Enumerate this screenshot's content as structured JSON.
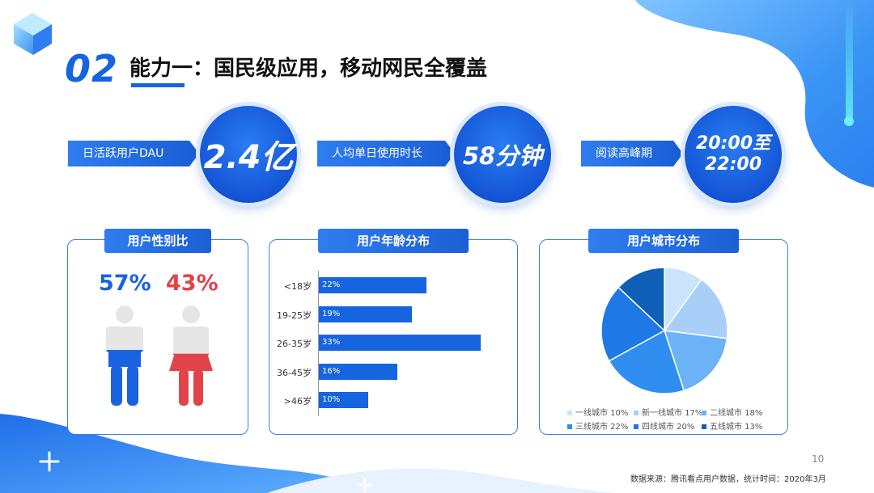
{
  "header": {
    "section_number": "02",
    "title": "能力一：国民级应用，移动网民全覆盖"
  },
  "stats": [
    {
      "label": "日活跃用户DAU",
      "value": "2.4亿"
    },
    {
      "label": "人均单日使用时长",
      "value": "58分钟"
    },
    {
      "label": "阅读高峰期",
      "value_line1": "20:00至",
      "value_line2": "22:00"
    }
  ],
  "gender_panel": {
    "title": "用户性别比",
    "male_pct": "57%",
    "female_pct": "43%",
    "male_fill": 0.57,
    "female_fill": 0.43
  },
  "age_panel": {
    "title": "用户年龄分布",
    "categories": [
      "<18岁",
      "19-25岁",
      "26-35岁",
      "36-45岁",
      ">46岁"
    ],
    "values": [
      22,
      19,
      33,
      16,
      10
    ],
    "value_labels": [
      "22%",
      "19%",
      "33%",
      "16%",
      "10%"
    ]
  },
  "city_panel": {
    "title": "用户城市分布",
    "legend": [
      "一线城市 10%",
      "新一线城市 17%",
      "二线城市 18%",
      "三线城市 22%",
      "四线城市 20%",
      "五线城市 13%"
    ]
  },
  "chart_data": [
    {
      "type": "bar",
      "title": "用户年龄分布",
      "categories": [
        "<18岁",
        "19-25岁",
        "26-35岁",
        "36-45岁",
        ">46岁"
      ],
      "values": [
        22,
        19,
        33,
        16,
        10
      ],
      "unit": "%"
    },
    {
      "type": "pie",
      "title": "用户城市分布",
      "categories": [
        "一线城市",
        "新一线城市",
        "二线城市",
        "三线城市",
        "四线城市",
        "五线城市"
      ],
      "values": [
        10,
        17,
        18,
        22,
        20,
        13
      ],
      "unit": "%",
      "colors": [
        "#c9e4fb",
        "#a9cff8",
        "#6bb2f6",
        "#2f8ef0",
        "#1e78e6",
        "#0d5fb8"
      ]
    }
  ],
  "colors": {
    "accent": "#1565e0",
    "male": "#1a63e0",
    "female": "#e0444a",
    "silhouette": "#e6e6e6"
  },
  "footer": {
    "page_number": "10",
    "source": "数据来源：腾讯看点用户数据，统计时间：2020年3月"
  }
}
